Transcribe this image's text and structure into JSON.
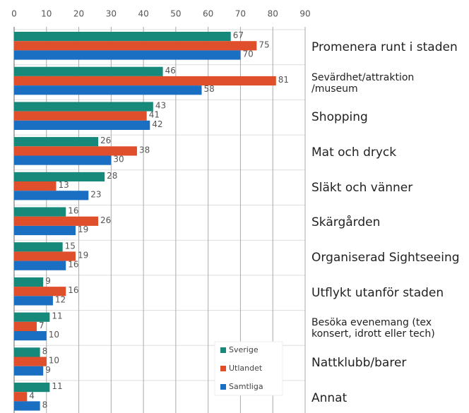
{
  "chart_data": {
    "type": "bar",
    "orientation": "horizontal",
    "categories": [
      "Promenera runt i staden",
      "Sevärdhet/attraktion\n/museum",
      "Shopping",
      "Mat och dryck",
      "Släkt och vänner",
      "Skärgården",
      "Organiserad Sightseeing",
      "Utflykt utanför staden",
      "Besöka evenemang (tex\nkonsert, idrott eller tech)",
      "Nattklubb/barer",
      "Annat"
    ],
    "series": [
      {
        "name": "Sverige",
        "color": "#17897a",
        "values": [
          67,
          46,
          43,
          26,
          28,
          16,
          15,
          9,
          11,
          8,
          11
        ]
      },
      {
        "name": "Utlandet",
        "color": "#e04f2c",
        "values": [
          75,
          81,
          41,
          38,
          13,
          26,
          19,
          16,
          7,
          10,
          4
        ]
      },
      {
        "name": "Samtliga",
        "color": "#1b6fc2",
        "values": [
          70,
          58,
          42,
          30,
          23,
          19,
          16,
          12,
          10,
          9,
          8
        ]
      }
    ],
    "xlim": [
      0,
      90
    ],
    "xticks": [
      0,
      10,
      20,
      30,
      40,
      50,
      60,
      70,
      80,
      90
    ],
    "grid": true,
    "legend": "lower right"
  }
}
